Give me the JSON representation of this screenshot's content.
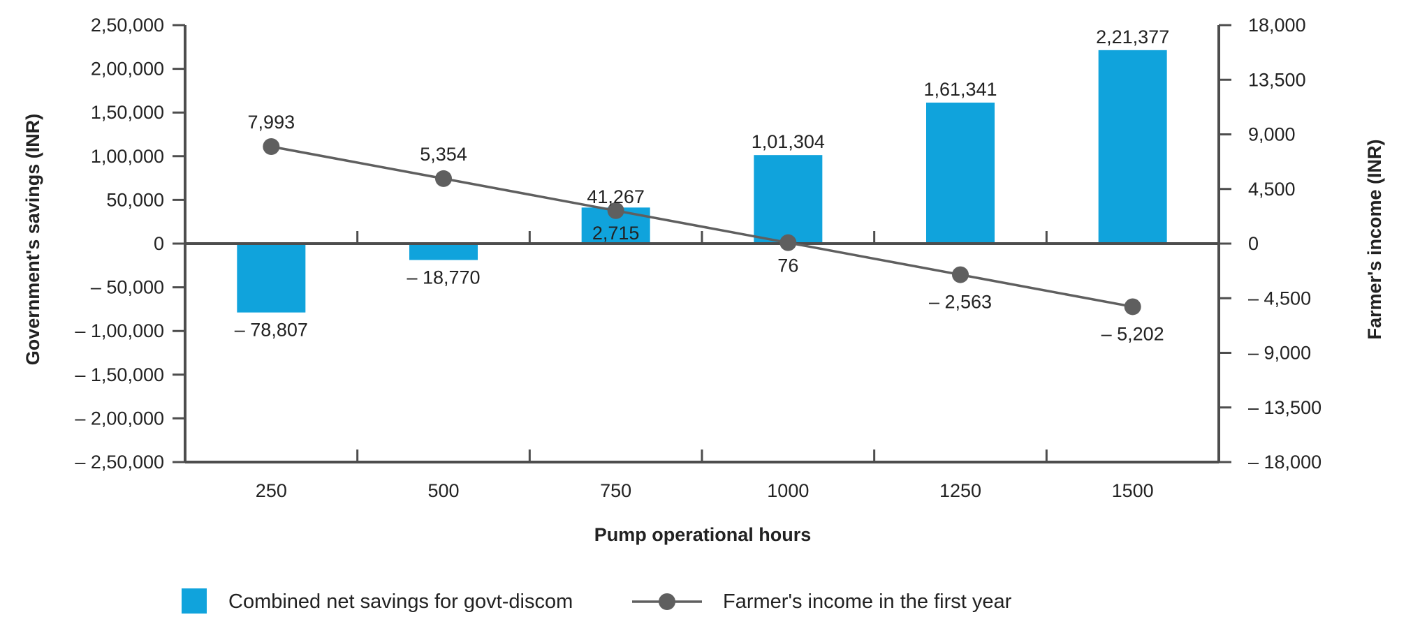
{
  "chart_data": {
    "type": "bar",
    "categories": [
      "250",
      "500",
      "750",
      "1000",
      "1250",
      "1500"
    ],
    "xlabel": "Pump operational hours",
    "ylabel": "Government's  savings (INR)",
    "y2label": "Farmer's income (INR)",
    "ylim": [
      -250000,
      250000
    ],
    "y2lim": [
      -18000,
      18000
    ],
    "grid": false,
    "legend_position": "bottom",
    "y_ticks": [
      {
        "value": 250000,
        "label": "2,50,000"
      },
      {
        "value": 200000,
        "label": "2,00,000"
      },
      {
        "value": 150000,
        "label": "1,50,000"
      },
      {
        "value": 100000,
        "label": "1,00,000"
      },
      {
        "value": 50000,
        "label": "50,000"
      },
      {
        "value": 0,
        "label": "0"
      },
      {
        "value": -50000,
        "label": "– 50,000"
      },
      {
        "value": -100000,
        "label": "– 1,00,000"
      },
      {
        "value": -150000,
        "label": "– 1,50,000"
      },
      {
        "value": -200000,
        "label": "– 2,00,000"
      },
      {
        "value": -250000,
        "label": "– 2,50,000"
      }
    ],
    "y2_ticks": [
      {
        "value": 18000,
        "label": "18,000"
      },
      {
        "value": 13500,
        "label": "13,500"
      },
      {
        "value": 9000,
        "label": "9,000"
      },
      {
        "value": 4500,
        "label": "4,500"
      },
      {
        "value": 0,
        "label": "0"
      },
      {
        "value": -4500,
        "label": "– 4,500"
      },
      {
        "value": -9000,
        "label": "– 9,000"
      },
      {
        "value": -13500,
        "label": "– 13,500"
      },
      {
        "value": -18000,
        "label": "– 18,000"
      }
    ],
    "series": [
      {
        "name": "Combined net savings for govt-discom",
        "type": "bar",
        "axis": "left",
        "color": "#10A3DC",
        "values": [
          -78807,
          -18770,
          41267,
          101304,
          161341,
          221377
        ],
        "labels": [
          "– 78,807",
          "– 18,770",
          "41,267",
          "1,01,304",
          "1,61,341",
          "2,21,377"
        ]
      },
      {
        "name": "Farmer's income in the first year",
        "type": "line",
        "axis": "right",
        "color": "#5F5F5F",
        "values": [
          7993,
          5354,
          2715,
          76,
          -2563,
          -5202
        ],
        "labels": [
          "7,993",
          "5,354",
          "2,715",
          "76",
          "– 2,563",
          "– 5,202"
        ]
      }
    ]
  }
}
